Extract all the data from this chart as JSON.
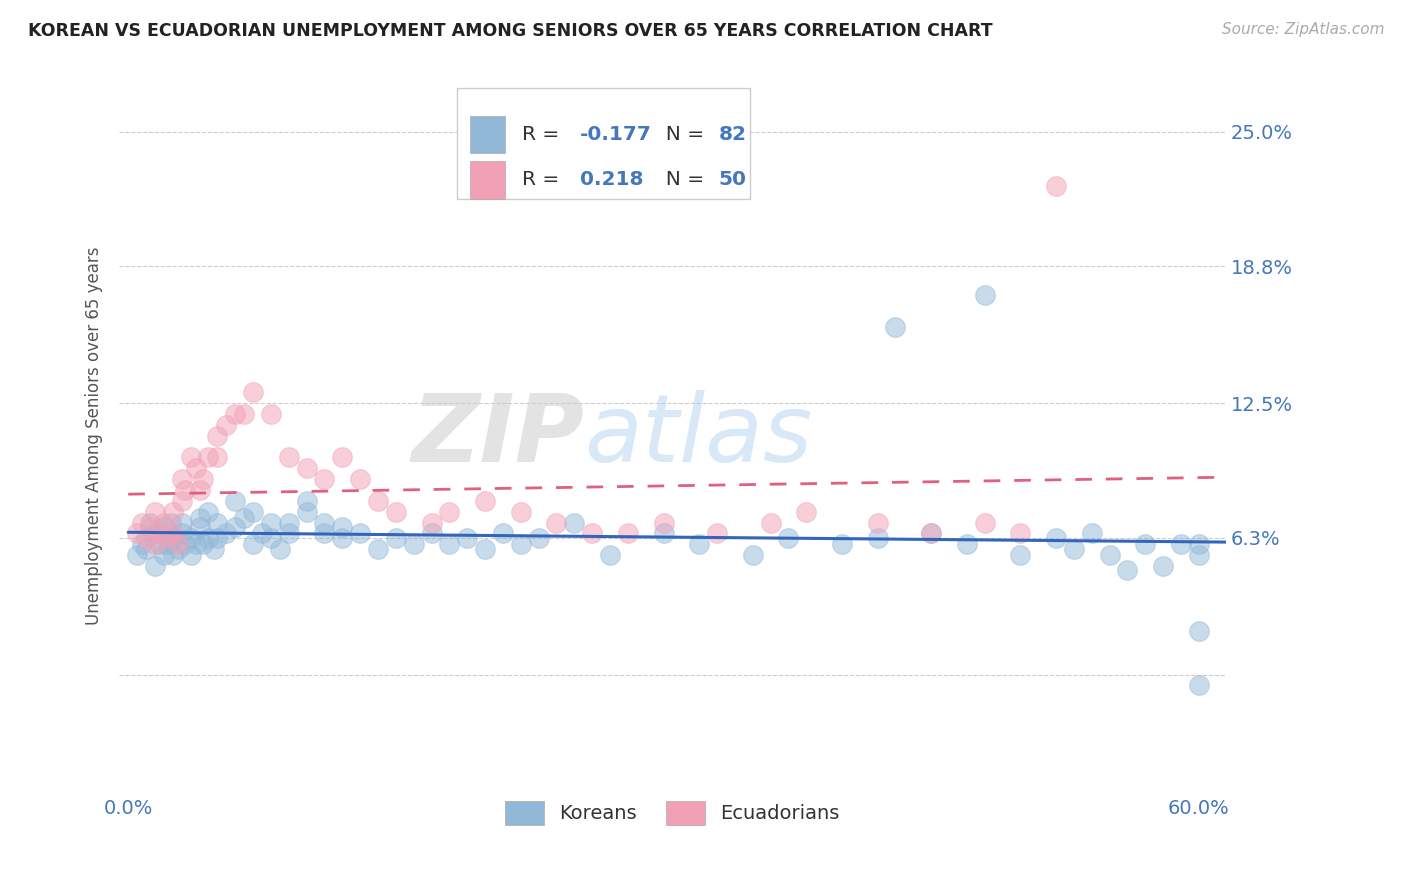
{
  "title": "KOREAN VS ECUADORIAN UNEMPLOYMENT AMONG SENIORS OVER 65 YEARS CORRELATION CHART",
  "source": "Source: ZipAtlas.com",
  "ylabel": "Unemployment Among Seniors over 65 years",
  "xlim": [
    -0.005,
    0.615
  ],
  "ylim": [
    -0.055,
    0.275
  ],
  "ytick_vals": [
    0.0,
    0.063,
    0.125,
    0.188,
    0.25
  ],
  "ytick_labels": [
    "",
    "6.3%",
    "12.5%",
    "18.8%",
    "25.0%"
  ],
  "xtick_vals": [
    0.0,
    0.1,
    0.2,
    0.3,
    0.4,
    0.5,
    0.6
  ],
  "xtick_labels": [
    "0.0%",
    "",
    "",
    "",
    "",
    "",
    "60.0%"
  ],
  "korean_color": "#92b8d8",
  "ecuadorian_color": "#f2a0b5",
  "korean_line_color": "#3366bb",
  "ecuadorian_line_color": "#e06080",
  "korean_R": -0.177,
  "korean_N": 82,
  "ecuadorian_R": 0.218,
  "ecuadorian_N": 50,
  "watermark_zip": "ZIP",
  "watermark_atlas": "atlas",
  "background_color": "#ffffff",
  "tick_color": "#4477bb",
  "grid_color": "#cccccc",
  "title_color": "#222222",
  "label_color": "#555555",
  "korean_x": [
    0.005,
    0.008,
    0.01,
    0.012,
    0.015,
    0.015,
    0.018,
    0.02,
    0.02,
    0.022,
    0.024,
    0.025,
    0.025,
    0.028,
    0.03,
    0.03,
    0.032,
    0.035,
    0.035,
    0.038,
    0.04,
    0.04,
    0.042,
    0.045,
    0.045,
    0.048,
    0.05,
    0.05,
    0.055,
    0.06,
    0.06,
    0.065,
    0.07,
    0.07,
    0.075,
    0.08,
    0.08,
    0.085,
    0.09,
    0.09,
    0.1,
    0.1,
    0.11,
    0.11,
    0.12,
    0.12,
    0.13,
    0.14,
    0.15,
    0.16,
    0.17,
    0.18,
    0.19,
    0.2,
    0.21,
    0.22,
    0.23,
    0.25,
    0.27,
    0.3,
    0.32,
    0.35,
    0.37,
    0.4,
    0.42,
    0.43,
    0.45,
    0.47,
    0.48,
    0.5,
    0.52,
    0.53,
    0.54,
    0.55,
    0.56,
    0.57,
    0.58,
    0.59,
    0.6,
    0.6,
    0.6,
    0.6
  ],
  "korean_y": [
    0.055,
    0.06,
    0.058,
    0.07,
    0.05,
    0.065,
    0.06,
    0.055,
    0.068,
    0.06,
    0.07,
    0.055,
    0.063,
    0.058,
    0.065,
    0.07,
    0.06,
    0.055,
    0.063,
    0.06,
    0.068,
    0.072,
    0.06,
    0.075,
    0.063,
    0.058,
    0.07,
    0.063,
    0.065,
    0.08,
    0.068,
    0.072,
    0.06,
    0.075,
    0.065,
    0.063,
    0.07,
    0.058,
    0.065,
    0.07,
    0.075,
    0.08,
    0.065,
    0.07,
    0.063,
    0.068,
    0.065,
    0.058,
    0.063,
    0.06,
    0.065,
    0.06,
    0.063,
    0.058,
    0.065,
    0.06,
    0.063,
    0.07,
    0.055,
    0.065,
    0.06,
    0.055,
    0.063,
    0.06,
    0.063,
    0.16,
    0.065,
    0.06,
    0.175,
    0.055,
    0.063,
    0.058,
    0.065,
    0.055,
    0.048,
    0.06,
    0.05,
    0.06,
    -0.005,
    0.02,
    0.055,
    0.06
  ],
  "ecuadorian_x": [
    0.005,
    0.008,
    0.01,
    0.012,
    0.015,
    0.015,
    0.018,
    0.02,
    0.022,
    0.025,
    0.025,
    0.028,
    0.03,
    0.03,
    0.032,
    0.035,
    0.038,
    0.04,
    0.042,
    0.045,
    0.05,
    0.05,
    0.055,
    0.06,
    0.065,
    0.07,
    0.08,
    0.09,
    0.1,
    0.11,
    0.12,
    0.13,
    0.14,
    0.15,
    0.17,
    0.18,
    0.2,
    0.22,
    0.24,
    0.26,
    0.28,
    0.3,
    0.33,
    0.36,
    0.38,
    0.42,
    0.45,
    0.48,
    0.5,
    0.52
  ],
  "ecuadorian_y": [
    0.065,
    0.07,
    0.063,
    0.068,
    0.075,
    0.06,
    0.065,
    0.07,
    0.063,
    0.075,
    0.065,
    0.06,
    0.08,
    0.09,
    0.085,
    0.1,
    0.095,
    0.085,
    0.09,
    0.1,
    0.1,
    0.11,
    0.115,
    0.12,
    0.12,
    0.13,
    0.12,
    0.1,
    0.095,
    0.09,
    0.1,
    0.09,
    0.08,
    0.075,
    0.07,
    0.075,
    0.08,
    0.075,
    0.07,
    0.065,
    0.065,
    0.07,
    0.065,
    0.07,
    0.075,
    0.07,
    0.065,
    0.07,
    0.065,
    0.225
  ]
}
